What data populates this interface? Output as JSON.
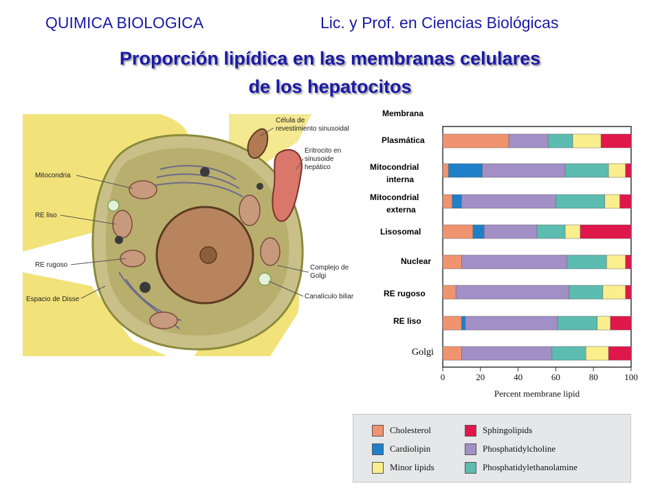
{
  "header": {
    "left": "QUIMICA BIOLOGICA",
    "right": "Lic. y Prof. en Ciencias Biológicas"
  },
  "title": {
    "line1": "Proporción lipídica en las membranas celulares",
    "line2": "de los hepatocitos"
  },
  "cell_figure": {
    "labels": {
      "mitocondria": "Mitocondria",
      "re_liso": "RE liso",
      "re_rugoso": "RE rugoso",
      "disse": "Espacio de Disse",
      "celula_1": "Célula de",
      "celula_2": "revestimiento sinusoidal",
      "eritrocito_1": "Eritrocito en",
      "eritrocito_2": "sinusoide",
      "eritrocito_3": "hepático",
      "golgi_1": "Complejo de",
      "golgi_2": "Golgi",
      "canaliculo": "Canalículo biliar"
    }
  },
  "category_labels": {
    "membrana": "Membrana",
    "plasmatica": "Plasmática",
    "mito_int_1": "Mitocondrial",
    "mito_int_2": "interna",
    "mito_ext_1": "Mitocondrial",
    "mito_ext_2": "externa",
    "lisosomal": "Lisosomal",
    "nuclear": "Nuclear",
    "re_rugoso": "RE rugoso",
    "re_liso": "RE liso",
    "golgi": "Golgi"
  },
  "colors": {
    "Cholesterol": "#f0936f",
    "Cardiolipin": "#1f7fc9",
    "Phosphatidylcholine": "#a28fc6",
    "Phosphatidylethanolamine": "#5cbcb0",
    "Minor lipids": "#fbee8c",
    "Sphingolipids": "#e0174b"
  },
  "chart_data": {
    "type": "bar",
    "orientation": "horizontal",
    "stacked": true,
    "categories": [
      "Plasmática",
      "Mitocondrial interna",
      "Mitocondrial externa",
      "Lisosomal",
      "Nuclear",
      "RE rugoso",
      "RE liso",
      "Golgi"
    ],
    "series": [
      {
        "name": "Cholesterol",
        "values": [
          35,
          3,
          5,
          16,
          10,
          7,
          10,
          10
        ]
      },
      {
        "name": "Cardiolipin",
        "values": [
          0,
          18,
          5,
          6,
          0,
          0,
          2,
          0
        ]
      },
      {
        "name": "Phosphatidylcholine",
        "values": [
          21,
          44,
          50,
          28,
          56,
          60,
          49,
          48
        ]
      },
      {
        "name": "Phosphatidylethanolamine",
        "values": [
          13,
          23,
          26,
          15,
          21,
          18,
          21,
          18
        ]
      },
      {
        "name": "Minor lipids",
        "values": [
          15,
          9,
          8,
          8,
          10,
          12,
          7,
          12
        ]
      },
      {
        "name": "Sphingolipids",
        "values": [
          16,
          3,
          6,
          27,
          3,
          3,
          11,
          12
        ]
      }
    ],
    "xlabel": "Percent membrane lipid",
    "xlim": [
      0,
      100
    ],
    "xticks": [
      0,
      20,
      40,
      60,
      80,
      100
    ],
    "legend_position": "bottom-right",
    "legend_layout": [
      [
        "Cholesterol",
        "Sphingolipids"
      ],
      [
        "Cardiolipin",
        "Phosphatidylcholine"
      ],
      [
        "Minor lipids",
        "Phosphatidylethanolamine"
      ]
    ]
  }
}
